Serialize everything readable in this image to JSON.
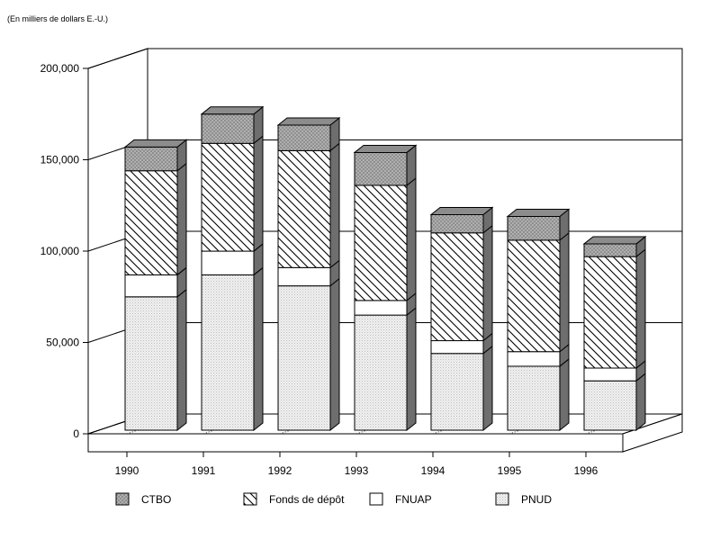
{
  "chart_data": {
    "type": "bar",
    "stacked": true,
    "three_d": true,
    "unit_note": "(En milliers de dollars E.-U.)",
    "categories": [
      "1990",
      "1991",
      "1992",
      "1993",
      "1994",
      "1995",
      "1996"
    ],
    "series": [
      {
        "name": "PNUD",
        "values": [
          73000,
          85000,
          79000,
          63000,
          42000,
          35000,
          27000
        ],
        "pattern": "dots",
        "color": "#ebebeb"
      },
      {
        "name": "FNUAP",
        "values": [
          12000,
          13000,
          10000,
          8000,
          7000,
          8000,
          7000
        ],
        "pattern": "solid",
        "color": "#ffffff"
      },
      {
        "name": "Fonds de dépôt",
        "values": [
          57000,
          59000,
          64000,
          63000,
          59000,
          61000,
          61000
        ],
        "pattern": "hatch",
        "color": "#ffffff"
      },
      {
        "name": "CTBO",
        "values": [
          13000,
          16000,
          14000,
          18000,
          10000,
          13000,
          7000
        ],
        "pattern": "crosshatch",
        "color": "#b4b4b4"
      }
    ],
    "ylim": [
      0,
      200000
    ],
    "yticks": [
      0,
      50000,
      100000,
      150000,
      200000
    ],
    "ytick_labels": [
      "0",
      "50,000",
      "100,000",
      "150,000",
      "200,000"
    ],
    "grid": true,
    "legend_position": "bottom",
    "legend": [
      {
        "name": "CTBO",
        "pattern": "crosshatch"
      },
      {
        "name": "Fonds de dépôt",
        "pattern": "hatch"
      },
      {
        "name": "FNUAP",
        "pattern": "solid"
      },
      {
        "name": "PNUD",
        "pattern": "dots"
      }
    ]
  }
}
